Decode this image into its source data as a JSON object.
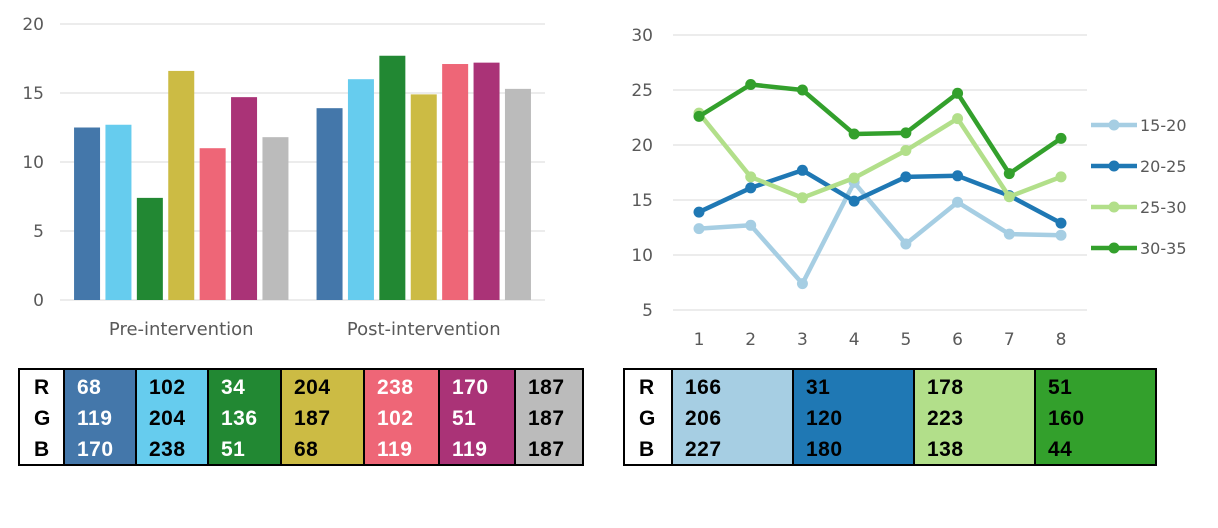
{
  "chart_data": [
    {
      "type": "bar",
      "categories": [
        "Pre-intervention",
        "Post-intervention"
      ],
      "ylim": [
        0,
        20
      ],
      "yticks": [
        0,
        5,
        10,
        15,
        20
      ],
      "grid": true,
      "series": [
        {
          "color": "#4477AA",
          "values": [
            12.5,
            13.9
          ]
        },
        {
          "color": "#66CCEE",
          "values": [
            12.7,
            16.0
          ]
        },
        {
          "color": "#228833",
          "values": [
            7.4,
            17.7
          ]
        },
        {
          "color": "#CCBB44",
          "values": [
            16.6,
            14.9
          ]
        },
        {
          "color": "#EE6677",
          "values": [
            11.0,
            17.1
          ]
        },
        {
          "color": "#AA3377",
          "values": [
            14.7,
            17.2
          ]
        },
        {
          "color": "#BBBBBB",
          "values": [
            11.8,
            15.3
          ]
        }
      ],
      "legend": "none"
    },
    {
      "type": "line",
      "x": [
        1,
        2,
        3,
        4,
        5,
        6,
        7,
        8
      ],
      "ylim": [
        5,
        30
      ],
      "yticks": [
        5,
        10,
        15,
        20,
        25,
        30
      ],
      "grid": true,
      "legend": "right",
      "series": [
        {
          "name": "15-20",
          "color": "#A6CEE3",
          "values": [
            12.4,
            12.7,
            7.4,
            16.6,
            11.0,
            14.8,
            11.9,
            11.8
          ]
        },
        {
          "name": "20-25",
          "color": "#1F78B4",
          "values": [
            13.9,
            16.1,
            17.7,
            14.9,
            17.1,
            17.2,
            15.4,
            12.9
          ]
        },
        {
          "name": "25-30",
          "color": "#B2DF8A",
          "values": [
            22.9,
            17.1,
            15.2,
            17.0,
            19.5,
            22.4,
            15.3,
            17.1
          ]
        },
        {
          "name": "30-35",
          "color": "#33A02C",
          "values": [
            22.6,
            25.5,
            25.0,
            21.0,
            21.1,
            24.7,
            17.4,
            20.6
          ]
        }
      ]
    }
  ],
  "tables": {
    "row_labels": [
      "R",
      "G",
      "B"
    ],
    "left": [
      {
        "bg": "#4477AA",
        "fg": "#ffffff",
        "values": [
          "68",
          "119",
          "170"
        ]
      },
      {
        "bg": "#66CCEE",
        "fg": "#000000",
        "values": [
          "102",
          "204",
          "238"
        ]
      },
      {
        "bg": "#228833",
        "fg": "#ffffff",
        "values": [
          "34",
          "136",
          "51"
        ]
      },
      {
        "bg": "#CCBB44",
        "fg": "#000000",
        "values": [
          "204",
          "187",
          "68"
        ]
      },
      {
        "bg": "#EE6677",
        "fg": "#ffffff",
        "values": [
          "238",
          "102",
          "119"
        ]
      },
      {
        "bg": "#AA3377",
        "fg": "#ffffff",
        "values": [
          "170",
          "51",
          "119"
        ]
      },
      {
        "bg": "#BBBBBB",
        "fg": "#000000",
        "values": [
          "187",
          "187",
          "187"
        ]
      }
    ],
    "right": [
      {
        "bg": "#A6CEE3",
        "fg": "#000000",
        "values": [
          "166",
          "206",
          "227"
        ]
      },
      {
        "bg": "#1F78B4",
        "fg": "#000000",
        "values": [
          "31",
          "120",
          "180"
        ]
      },
      {
        "bg": "#B2DF8A",
        "fg": "#000000",
        "values": [
          "178",
          "223",
          "138"
        ]
      },
      {
        "bg": "#33A02C",
        "fg": "#000000",
        "values": [
          "51",
          "160",
          "44"
        ]
      }
    ]
  }
}
